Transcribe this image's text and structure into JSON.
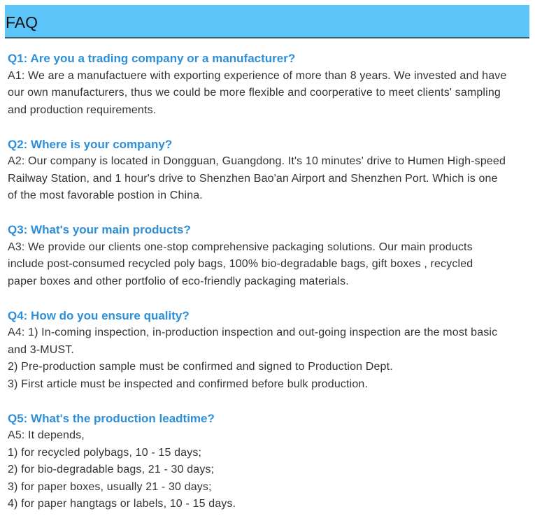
{
  "header": {
    "title": "FAQ",
    "background": "#5bc4f8"
  },
  "faqs": [
    {
      "question": "Q1: Are you a trading company or a manufacturer?",
      "answer": [
        "A1: We are a manufactuere with exporting experience of more than 8 years. We invested and have",
        "our own manufacturers, thus we could be more flexible and coorperative to meet clients' sampling",
        "and production requirements."
      ]
    },
    {
      "question": "Q2: Where is your company?",
      "answer": [
        "A2: Our company is located in Dongguan, Guangdong. It's 10 minutes' drive to Humen High-speed",
        "Railway Station, and 1 hour's drive to Shenzhen Bao'an Airport and Shenzhen Port. Which is one",
        "of the most favorable postion in China."
      ]
    },
    {
      "question": "Q3: What's your main products?",
      "answer": [
        "A3: We provide our clients one-stop comprehensive packaging solutions. Our main products",
        "include post-consumed recycled poly bags, 100% bio-degradable bags, gift boxes , recycled",
        "paper boxes and other portfolio of eco-friendly packaging materials."
      ]
    },
    {
      "question": "Q4: How do you ensure quality?",
      "answer": [
        "A4: 1) In-coming inspection, in-production inspection and out-going inspection are the most basic",
        "and 3-MUST.",
        "2) Pre-production sample must be confirmed and signed to Production Dept.",
        "3) First article must be inspected and confirmed before bulk production."
      ]
    },
    {
      "question": "Q5: What's the production leadtime?",
      "answer": [
        "A5: It depends,",
        "1) for recycled polybags, 10 - 15 days;",
        "2) for bio-degradable bags, 21 - 30 days;",
        "3) for paper boxes, usually 21 - 30 days;",
        "4) for paper hangtags or labels, 10 - 15 days."
      ]
    }
  ]
}
